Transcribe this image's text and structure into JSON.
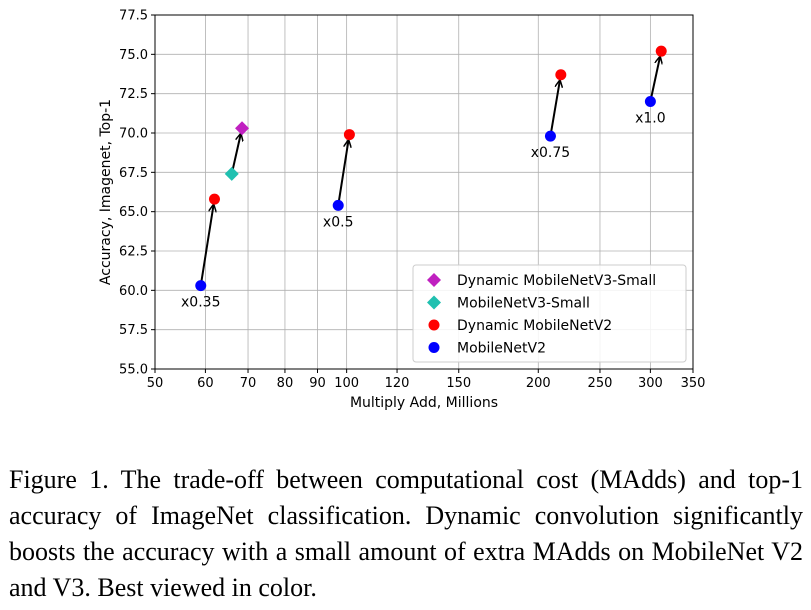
{
  "chart_data": {
    "type": "scatter",
    "xlabel": "Multiply Add, Millions",
    "ylabel": "Accuracy, Imagenet, Top-1",
    "x_scale": "log",
    "xlim": [
      50,
      350
    ],
    "ylim": [
      55.0,
      77.5
    ],
    "x_ticks": [
      50,
      60,
      70,
      80,
      90,
      100,
      120,
      150,
      200,
      250,
      300,
      350
    ],
    "x_tick_labels": [
      "50",
      "60",
      "70",
      "80",
      "90",
      "100",
      "120",
      "150",
      "200",
      "250",
      "300",
      "350"
    ],
    "y_ticks": [
      55.0,
      57.5,
      60.0,
      62.5,
      65.0,
      67.5,
      70.0,
      72.5,
      75.0,
      77.5
    ],
    "y_tick_labels": [
      "55.0",
      "57.5",
      "60.0",
      "62.5",
      "65.0",
      "67.5",
      "70.0",
      "72.5",
      "75.0",
      "77.5"
    ],
    "grid": true,
    "legend_position": "bottom-right",
    "series": [
      {
        "name": "Dynamic MobileNetV3-Small",
        "color": "#c020c0",
        "marker": "diamond",
        "points": [
          {
            "x": 68.5,
            "y": 70.3
          }
        ]
      },
      {
        "name": "MobileNetV3-Small",
        "color": "#20c0b0",
        "marker": "diamond",
        "points": [
          {
            "x": 66,
            "y": 67.4
          }
        ]
      },
      {
        "name": "Dynamic MobileNetV2",
        "color": "#ff0000",
        "marker": "circle",
        "points": [
          {
            "x": 62,
            "y": 65.8
          },
          {
            "x": 101,
            "y": 69.9
          },
          {
            "x": 217,
            "y": 73.7
          },
          {
            "x": 312,
            "y": 75.2
          }
        ]
      },
      {
        "name": "MobileNetV2",
        "color": "#0000ff",
        "marker": "circle",
        "points": [
          {
            "x": 59,
            "y": 60.3
          },
          {
            "x": 97,
            "y": 65.4
          },
          {
            "x": 209,
            "y": 69.8
          },
          {
            "x": 300,
            "y": 72.0
          }
        ]
      }
    ],
    "arrows": [
      {
        "from": {
          "x": 59,
          "y": 60.3
        },
        "to": {
          "x": 62,
          "y": 65.8
        }
      },
      {
        "from": {
          "x": 66,
          "y": 67.4
        },
        "to": {
          "x": 68.5,
          "y": 70.3
        }
      },
      {
        "from": {
          "x": 97,
          "y": 65.4
        },
        "to": {
          "x": 101,
          "y": 69.9
        }
      },
      {
        "from": {
          "x": 209,
          "y": 69.8
        },
        "to": {
          "x": 217,
          "y": 73.7
        }
      },
      {
        "from": {
          "x": 300,
          "y": 72.0
        },
        "to": {
          "x": 312,
          "y": 75.2
        }
      }
    ],
    "annotations": [
      {
        "text": "x0.35",
        "x": 59,
        "y": 60.3
      },
      {
        "text": "x0.5",
        "x": 97,
        "y": 65.4
      },
      {
        "text": "x0.75",
        "x": 209,
        "y": 69.8
      },
      {
        "text": "x1.0",
        "x": 300,
        "y": 72.0
      }
    ]
  },
  "caption": "Figure 1. The trade-off between computational cost (MAdds) and top-1 accuracy of ImageNet classification. Dynamic convolution significantly boosts the accuracy with a small amount of extra MAdds on MobileNet V2 and V3. Best viewed in color."
}
